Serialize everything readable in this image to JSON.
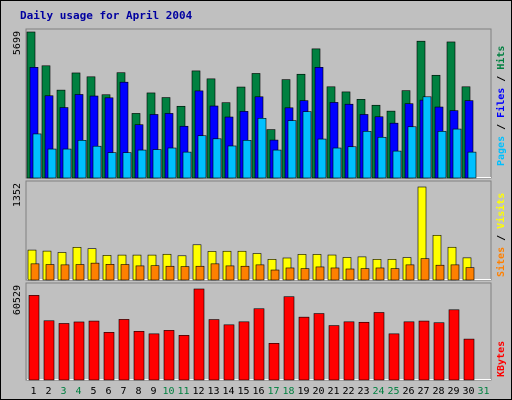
{
  "title": "Daily usage for April 2004",
  "colors": {
    "hits": "#008040",
    "files": "#0000ff",
    "pages": "#00c0ff",
    "visits": "#ffff00",
    "sites": "#ff8000",
    "kbytes": "#ff0000",
    "weekend_label": "#008040",
    "weekday_label": "#000000"
  },
  "chart_data": [
    {
      "type": "bar",
      "name": "hits-files-pages",
      "categories": [
        "1",
        "2",
        "3",
        "4",
        "5",
        "6",
        "7",
        "8",
        "9",
        "10",
        "11",
        "12",
        "13",
        "14",
        "15",
        "16",
        "17",
        "18",
        "19",
        "20",
        "21",
        "22",
        "23",
        "24",
        "25",
        "26",
        "27",
        "28",
        "29",
        "30",
        "31"
      ],
      "series": [
        {
          "name": "Hits",
          "values": [
            5699,
            4380,
            3430,
            4100,
            3950,
            3250,
            4110,
            2520,
            3320,
            3140,
            2800,
            4180,
            3870,
            2940,
            3550,
            4080,
            1890,
            3840,
            4050,
            5040,
            3560,
            3360,
            3070,
            2840,
            2610,
            3410,
            5340,
            4010,
            5310,
            3560,
            0
          ]
        },
        {
          "name": "Files",
          "values": [
            4320,
            3210,
            2750,
            3260,
            3200,
            3130,
            3740,
            2080,
            2480,
            2520,
            2020,
            3400,
            2810,
            2380,
            2600,
            3170,
            1480,
            2740,
            3020,
            4320,
            2950,
            2880,
            2480,
            2390,
            2140,
            2900,
            3040,
            2770,
            2630,
            3020,
            0
          ]
        },
        {
          "name": "Pages",
          "values": [
            1720,
            1130,
            1130,
            1470,
            1240,
            990,
            990,
            1090,
            1110,
            1170,
            1010,
            1650,
            1530,
            1250,
            1470,
            2330,
            1090,
            2240,
            2590,
            1520,
            1170,
            1220,
            1820,
            1590,
            1050,
            2000,
            3170,
            1820,
            1910,
            1010,
            0
          ]
        }
      ],
      "ylabel": "Pages / Files / Hits",
      "ytick": "5699",
      "ymax": 5699
    },
    {
      "type": "bar",
      "name": "visits-sites",
      "categories": [
        "1",
        "2",
        "3",
        "4",
        "5",
        "6",
        "7",
        "8",
        "9",
        "10",
        "11",
        "12",
        "13",
        "14",
        "15",
        "16",
        "17",
        "18",
        "19",
        "20",
        "21",
        "22",
        "23",
        "24",
        "25",
        "26",
        "27",
        "28",
        "29",
        "30",
        "31"
      ],
      "series": [
        {
          "name": "Visits",
          "values": [
            435,
            420,
            400,
            475,
            455,
            358,
            362,
            362,
            362,
            374,
            352,
            512,
            415,
            418,
            418,
            385,
            300,
            320,
            372,
            372,
            363,
            327,
            336,
            300,
            300,
            326,
            1352,
            650,
            476,
            322,
            0
          ]
        },
        {
          "name": "Sites",
          "values": [
            235,
            225,
            220,
            225,
            245,
            228,
            225,
            205,
            208,
            200,
            195,
            200,
            235,
            205,
            200,
            220,
            145,
            175,
            165,
            190,
            175,
            160,
            165,
            175,
            165,
            220,
            310,
            215,
            220,
            180,
            0
          ]
        }
      ],
      "ylabel": "Sites / Visits",
      "ytick": "1352",
      "ymax": 1352
    },
    {
      "type": "bar",
      "name": "kbytes",
      "categories": [
        "1",
        "2",
        "3",
        "4",
        "5",
        "6",
        "7",
        "8",
        "9",
        "10",
        "11",
        "12",
        "13",
        "14",
        "15",
        "16",
        "17",
        "18",
        "19",
        "20",
        "21",
        "22",
        "23",
        "24",
        "25",
        "26",
        "27",
        "28",
        "29",
        "30",
        "31"
      ],
      "series": [
        {
          "name": "KBytes",
          "values": [
            56300,
            39400,
            37600,
            38600,
            39200,
            31700,
            40300,
            32400,
            30700,
            33000,
            29700,
            60529,
            40200,
            36700,
            38700,
            47400,
            24400,
            55400,
            41800,
            44200,
            36200,
            38700,
            38400,
            44900,
            30700,
            38700,
            39200,
            38100,
            46700,
            27200,
            0
          ]
        }
      ],
      "ylabel": "KBytes",
      "ytick": "60529",
      "ymax": 60529
    }
  ],
  "weekend_days": [
    "3",
    "4",
    "10",
    "11",
    "17",
    "18",
    "24",
    "25",
    "31"
  ]
}
